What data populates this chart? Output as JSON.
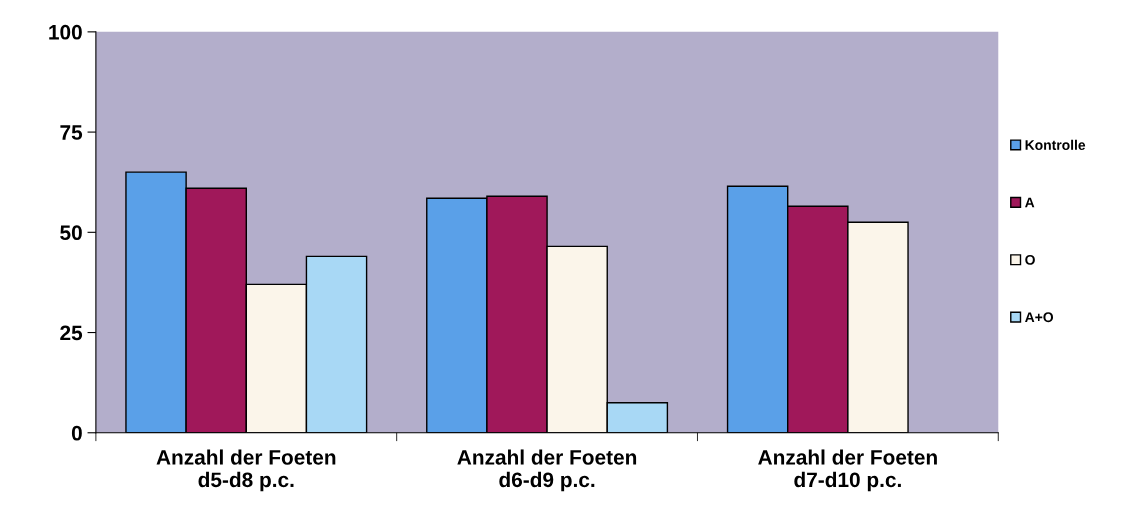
{
  "chart_data": {
    "type": "bar",
    "categories": [
      "Anzahl der Foeten\nd5-d8 p.c.",
      "Anzahl der Foeten\nd6-d9 p.c.",
      "Anzahl der Foeten\nd7-d10 p.c."
    ],
    "series": [
      {
        "name": "Kontrolle",
        "color": "#5aa0e8",
        "values": [
          65,
          58.5,
          61.5
        ]
      },
      {
        "name": "A",
        "color": "#a0185a",
        "values": [
          61,
          59,
          56.5
        ]
      },
      {
        "name": "O",
        "color": "#fbf5ea",
        "values": [
          37,
          46.5,
          52.5
        ]
      },
      {
        "name": "A+O",
        "color": "#a8d8f5",
        "values": [
          44,
          7.5,
          null
        ]
      }
    ],
    "ylim": [
      0,
      100
    ],
    "yticks": [
      0,
      25,
      50,
      75,
      100
    ],
    "grid": false,
    "legend": "right"
  }
}
